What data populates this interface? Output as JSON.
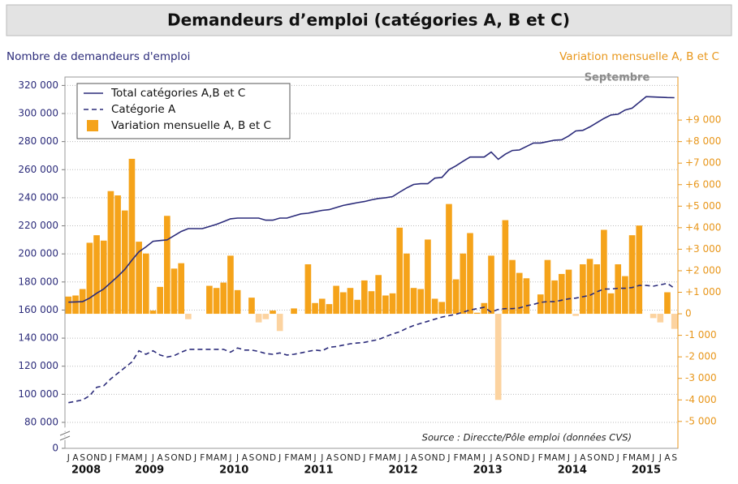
{
  "chart_data": {
    "type": "bar",
    "title": "Demandeurs d’emploi (catégories A, B et C)",
    "y_label": "Nombre de demandeurs d'emploi",
    "y2_label": "Variation mensuelle A, B et C",
    "annotations": [
      "Septembre",
      "Source : Direccte/Pôle emploi (données CVS)"
    ],
    "categories": [
      "J",
      "A",
      "S",
      "O",
      "N",
      "D",
      "J",
      "F",
      "M",
      "A",
      "M",
      "J",
      "J",
      "A",
      "S",
      "O",
      "N",
      "D",
      "J",
      "F",
      "M",
      "A",
      "M",
      "J",
      "J",
      "A",
      "S",
      "O",
      "N",
      "D",
      "J",
      "F",
      "M",
      "A",
      "M",
      "J",
      "J",
      "A",
      "S",
      "O",
      "N",
      "D",
      "J",
      "F",
      "M",
      "A",
      "M",
      "J",
      "J",
      "A",
      "S",
      "O",
      "N",
      "D",
      "J",
      "F",
      "M",
      "A",
      "M",
      "J",
      "J",
      "A",
      "S",
      "O",
      "N",
      "D",
      "J",
      "F",
      "M",
      "A",
      "M",
      "J",
      "J",
      "A",
      "S",
      "O",
      "N",
      "D",
      "J",
      "F",
      "M",
      "A",
      "M",
      "J",
      "J",
      "A",
      "S"
    ],
    "x_groups": [
      {
        "label": "2008",
        "months": 6
      },
      {
        "label": "2009",
        "months": 12
      },
      {
        "label": "2010",
        "months": 12
      },
      {
        "label": "2011",
        "months": 12
      },
      {
        "label": "2012",
        "months": 12
      },
      {
        "label": "2013",
        "months": 12
      },
      {
        "label": "2014",
        "months": 12
      },
      {
        "label": "2015",
        "months": 9
      }
    ],
    "ylim": [
      61500,
      326000
    ],
    "axis_break": true,
    "yticks": [
      0,
      {
        "value": 80000,
        "label": "80 000"
      },
      {
        "value": 100000,
        "label": "100 000"
      },
      {
        "value": 120000,
        "label": "120 000"
      },
      {
        "value": 140000,
        "label": "140 000"
      },
      {
        "value": 160000,
        "label": "160 000"
      },
      {
        "value": 180000,
        "label": "180 000"
      },
      {
        "value": 200000,
        "label": "200 000"
      },
      {
        "value": 220000,
        "label": "220 000"
      },
      {
        "value": 240000,
        "label": "240 000"
      },
      {
        "value": 260000,
        "label": "260 000"
      },
      {
        "value": 280000,
        "label": "280 000"
      },
      {
        "value": 300000,
        "label": "300 000"
      },
      {
        "value": 320000,
        "label": "320 000"
      }
    ],
    "y2lim": [
      -6250,
      11000
    ],
    "y2ticks": [
      {
        "value": -5000,
        "label": "-5 000"
      },
      {
        "value": -4000,
        "label": "-4 000"
      },
      {
        "value": -3000,
        "label": "-3 000"
      },
      {
        "value": -2000,
        "label": "-2 000"
      },
      {
        "value": -1000,
        "label": "-1 000"
      },
      0,
      {
        "value": 1000,
        "label": "+1 000"
      },
      {
        "value": 2000,
        "label": "+2 000"
      },
      {
        "value": 3000,
        "label": "+3 000"
      },
      {
        "value": 4000,
        "label": "+4 000"
      },
      {
        "value": 5000,
        "label": "+5 000"
      },
      {
        "value": 6000,
        "label": "+6 000"
      },
      {
        "value": 7000,
        "label": "+7 000"
      },
      {
        "value": 8000,
        "label": "+8 000"
      },
      {
        "value": 9000,
        "label": "+9 000"
      }
    ],
    "grid": true,
    "legend": "upper left",
    "series": [
      {
        "name": "Total catégories A,B et C",
        "type": "line",
        "color": "#2b2b7a",
        "values": [
          165600,
          165800,
          166000,
          168500,
          172000,
          175000,
          179500,
          184000,
          189000,
          195500,
          201500,
          205000,
          209000,
          209500,
          210000,
          213000,
          216000,
          218000,
          218000,
          218000,
          219500,
          221000,
          223000,
          225000,
          225500,
          225500,
          225500,
          225500,
          224000,
          224000,
          225500,
          225500,
          227000,
          228500,
          229000,
          230000,
          231000,
          231500,
          233000,
          234500,
          235500,
          236500,
          237300,
          238500,
          239500,
          240000,
          240800,
          244000,
          247000,
          249500,
          250000,
          250000,
          254000,
          254500,
          260000,
          262700,
          266000,
          269000,
          269000,
          269000,
          272500,
          267400,
          271000,
          273700,
          274000,
          276500,
          279000,
          279000,
          280000,
          281000,
          281300,
          284000,
          287600,
          288000,
          290500,
          293500,
          296500,
          299000,
          299500,
          302500,
          303800,
          308000,
          312000,
          311800,
          311600,
          311400,
          311300
        ]
      },
      {
        "name": "Catégorie A",
        "type": "line",
        "dash": true,
        "color": "#2b2b7a",
        "values": [
          94000,
          95000,
          96000,
          99000,
          105000,
          106000,
          111000,
          115000,
          119000,
          123000,
          131000,
          128500,
          131000,
          128000,
          126500,
          127500,
          130000,
          132000,
          132000,
          132000,
          132000,
          132000,
          132000,
          130000,
          133000,
          131500,
          131500,
          130500,
          129000,
          128500,
          129500,
          128000,
          128500,
          129500,
          130500,
          131500,
          131000,
          133500,
          134000,
          135000,
          136000,
          136500,
          137000,
          138000,
          139000,
          141000,
          143000,
          144500,
          147000,
          149000,
          150500,
          152000,
          153500,
          155000,
          156000,
          157000,
          158500,
          160000,
          161000,
          162000,
          158500,
          160500,
          161000,
          161000,
          161500,
          163000,
          164000,
          165500,
          166000,
          166000,
          167000,
          168000,
          168500,
          169500,
          170500,
          173000,
          175000,
          175000,
          175500,
          175500,
          176000,
          177500,
          177500,
          177000,
          178000,
          179000,
          175500
        ]
      },
      {
        "name": "Variation mensuelle A, B et C",
        "type": "bar",
        "axis": "y2",
        "color": "#f5a31a",
        "negative_color": "#fcd3a0",
        "values": [
          800,
          850,
          1150,
          3300,
          3650,
          3400,
          5700,
          5500,
          4800,
          7200,
          3350,
          2800,
          150,
          1250,
          4550,
          2100,
          2350,
          -250,
          0,
          0,
          1300,
          1200,
          1450,
          2700,
          1100,
          0,
          750,
          -400,
          -250,
          150,
          -800,
          0,
          250,
          0,
          2300,
          500,
          700,
          450,
          1300,
          1000,
          1200,
          650,
          1550,
          1050,
          1800,
          850,
          950,
          4000,
          2800,
          1200,
          1150,
          3450,
          700,
          550,
          5100,
          1600,
          2800,
          3750,
          50,
          500,
          2700,
          -4000,
          4350,
          2500,
          1900,
          1650,
          0,
          900,
          2500,
          1550,
          1850,
          2050,
          -100,
          2300,
          2550,
          2300,
          3900,
          950,
          2300,
          1750,
          3650,
          4100,
          0,
          -200,
          -400,
          1000,
          -700
        ]
      }
    ]
  }
}
